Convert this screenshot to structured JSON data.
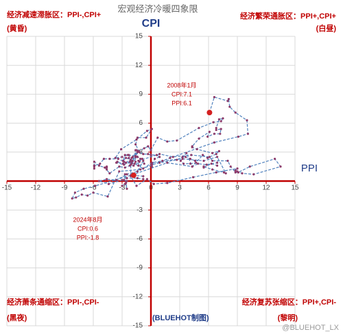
{
  "chart_data": {
    "type": "line",
    "title": "宏观经济冷暖四象限",
    "xlabel": "PPI",
    "ylabel": "CPI",
    "xlim": [
      -15,
      15
    ],
    "ylim": [
      -15,
      15
    ],
    "xticks": [
      -15,
      -12,
      -9,
      -6,
      -3,
      0,
      3,
      6,
      9,
      12,
      15
    ],
    "yticks": [
      -15,
      -12,
      -9,
      -6,
      -3,
      3,
      6,
      9,
      12,
      15
    ],
    "grid": true,
    "color": "#4f81bd",
    "marker_color": "#8e3b6a",
    "axis_color": "#c00000",
    "highlight_color": "#d42020",
    "x": [
      6.1,
      6.6,
      8.0,
      8.1,
      8.2,
      8.8,
      10.0,
      10.1,
      9.1,
      6.6,
      2.0,
      -1.1,
      -3.3,
      -4.5,
      -6.0,
      -6.6,
      -7.2,
      -7.8,
      -8.2,
      -7.9,
      -7.0,
      -5.8,
      -2.1,
      1.7,
      4.3,
      5.4,
      5.9,
      6.8,
      7.1,
      6.4,
      4.8,
      4.3,
      4.3,
      5.0,
      6.1,
      5.9,
      6.6,
      7.2,
      7.3,
      6.8,
      6.8,
      7.1,
      7.5,
      7.3,
      6.5,
      5.0,
      2.7,
      1.7,
      0.7,
      0.0,
      -0.3,
      -0.7,
      -1.4,
      -2.1,
      -2.9,
      -3.5,
      -3.6,
      -2.8,
      -2.2,
      -1.9,
      -1.6,
      -1.6,
      -1.9,
      -2.6,
      -2.9,
      -2.7,
      -2.3,
      -1.6,
      -1.3,
      -1.5,
      -1.4,
      -1.4,
      -1.6,
      -2.0,
      -2.3,
      -2.0,
      -1.4,
      -1.1,
      -0.9,
      -1.2,
      -1.8,
      -2.2,
      -2.7,
      -3.3,
      -4.3,
      -4.8,
      -4.6,
      -4.6,
      -4.6,
      -4.8,
      -5.4,
      -5.9,
      -5.9,
      -5.9,
      -5.9,
      -5.9,
      -5.3,
      -4.9,
      -4.3,
      -3.4,
      -2.8,
      -2.6,
      -1.7,
      -0.8,
      0.1,
      1.2,
      3.3,
      5.5,
      6.9,
      7.8,
      7.6,
      6.4,
      5.5,
      5.5,
      5.5,
      6.3,
      6.9,
      6.9,
      5.8,
      4.9,
      4.3,
      3.7,
      3.1,
      3.4,
      4.1,
      4.7,
      4.6,
      4.1,
      3.6,
      3.3,
      2.7,
      0.9,
      0.1,
      0.1,
      0.4,
      0.9,
      0.6,
      0.0,
      -0.3,
      -0.8,
      -1.2,
      -1.6,
      -1.4,
      -0.5,
      0.1,
      -0.4,
      -1.5,
      -3.1,
      -3.7,
      -3.0,
      -2.4,
      -2.0,
      -2.1,
      -2.1,
      -1.5,
      -0.4,
      0.3,
      1.7,
      4.4,
      6.8,
      9.0,
      8.8,
      9.0,
      9.5,
      10.7,
      13.5,
      12.9,
      10.3,
      9.1,
      8.8,
      8.3,
      8.0,
      6.4,
      6.1,
      4.2,
      2.3,
      0.9,
      -1.3,
      -1.3,
      -0.7,
      -0.8,
      -1.4,
      -2.5,
      -3.6,
      -4.6,
      -5.4,
      -4.4,
      -3.0,
      -2.5,
      -2.6,
      -3.0,
      -2.7,
      -2.5,
      -2.7,
      -2.8,
      -2.5,
      -1.4,
      -0.8,
      -0.8,
      -1.8
    ],
    "values": [
      7.1,
      8.7,
      8.3,
      8.5,
      7.7,
      7.1,
      6.3,
      4.9,
      4.6,
      4.0,
      2.4,
      1.2,
      1.0,
      -1.6,
      -1.2,
      -1.5,
      -1.4,
      -1.7,
      -1.8,
      -1.2,
      -0.8,
      -0.5,
      0.6,
      1.9,
      1.5,
      2.7,
      2.4,
      2.8,
      3.1,
      2.9,
      3.3,
      3.5,
      3.6,
      4.4,
      5.1,
      4.6,
      4.9,
      4.9,
      5.4,
      5.3,
      5.5,
      6.4,
      6.5,
      6.2,
      6.1,
      5.5,
      4.2,
      4.1,
      4.5,
      3.2,
      3.6,
      3.4,
      3.0,
      2.2,
      1.8,
      2.0,
      1.9,
      1.7,
      2.0,
      2.5,
      2.0,
      3.2,
      2.1,
      2.4,
      2.1,
      2.7,
      2.7,
      2.6,
      3.1,
      3.2,
      3.0,
      2.5,
      2.5,
      2.0,
      2.4,
      1.8,
      2.5,
      2.3,
      2.3,
      2.0,
      1.6,
      1.6,
      1.4,
      1.5,
      0.8,
      1.4,
      1.4,
      1.5,
      1.2,
      1.4,
      1.6,
      2.0,
      1.6,
      1.3,
      1.5,
      1.6,
      1.8,
      2.3,
      2.3,
      2.3,
      2.0,
      1.9,
      1.8,
      1.3,
      1.9,
      2.1,
      2.3,
      2.1,
      2.5,
      0.8,
      0.9,
      1.2,
      1.5,
      1.5,
      1.4,
      1.8,
      1.6,
      1.9,
      1.7,
      1.8,
      1.5,
      2.9,
      2.1,
      1.8,
      1.8,
      1.9,
      2.1,
      2.3,
      2.5,
      2.5,
      2.2,
      1.9,
      1.7,
      1.5,
      2.3,
      2.5,
      2.7,
      2.7,
      2.8,
      2.8,
      3.0,
      3.8,
      4.5,
      4.5,
      5.4,
      5.2,
      4.3,
      3.3,
      2.4,
      2.5,
      2.7,
      2.4,
      1.7,
      0.5,
      -0.5,
      0.2,
      -0.3,
      -0.2,
      0.4,
      0.9,
      1.3,
      1.1,
      1.0,
      0.8,
      0.7,
      1.5,
      2.3,
      1.5,
      0.9,
      0.9,
      1.5,
      2.1,
      2.1,
      2.5,
      2.7,
      2.5,
      2.8,
      2.1,
      1.6,
      1.8,
      2.1,
      1.0,
      0.7,
      0.1,
      0.2,
      0.0,
      -0.3,
      0.1,
      0.0,
      -0.2,
      -0.5,
      -0.3,
      -0.8,
      0.7,
      0.1,
      0.3,
      0.3,
      0.2,
      0.5,
      0.6
    ],
    "quadrants": [
      {
        "label": "经济减速滞胀区：PPI-,CPI+",
        "period": "(黄昏)"
      },
      {
        "label": "经济繁荣通胀区：PPI+,CPI+",
        "period": "(白昼)"
      },
      {
        "label": "经济萧条通缩区：PPI-,CPI-",
        "period": "(黑夜)"
      },
      {
        "label": "经济复苏张缩区：PPI+,CPI-",
        "period": "(黎明)"
      }
    ],
    "annotations": [
      [
        "2008年1月",
        "CPI:7.1",
        "PPI:6.1"
      ],
      [
        "2024年8月",
        "CPI:0.6",
        "PPI:-1.8"
      ]
    ],
    "credit": "(BLUEHOT制图)",
    "watermark": "@BLUEHOT_LX"
  }
}
